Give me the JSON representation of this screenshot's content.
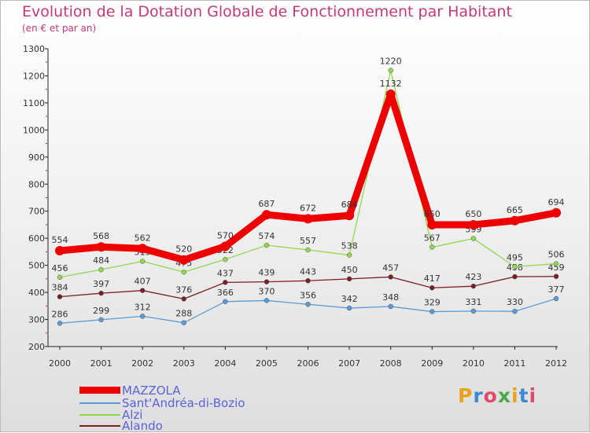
{
  "header": {
    "title": "Evolution de la Dotation Globale de Fonctionnement par Habitant",
    "subtitle": "(en € et par an)"
  },
  "brand": {
    "letters": [
      "P",
      "r",
      "o",
      "x",
      "i",
      "t",
      "i"
    ],
    "colors": [
      "#e8a21b",
      "#3a8ad6",
      "#e04b6b",
      "#4aa84a",
      "#e8a21b",
      "#3a8ad6",
      "#e04b6b"
    ]
  },
  "chart_data": {
    "type": "line",
    "title": "Evolution de la Dotation Globale de Fonctionnement par Habitant",
    "subtitle": "(en € et par an)",
    "xlabel": "",
    "ylabel": "",
    "ylim": [
      200,
      1300
    ],
    "yticks": [
      200,
      300,
      400,
      500,
      600,
      700,
      800,
      900,
      1000,
      1100,
      1200,
      1300
    ],
    "grid": false,
    "legend_position": "bottom-left",
    "categories": [
      "2000",
      "2001",
      "2002",
      "2003",
      "2004",
      "2005",
      "2006",
      "2007",
      "2008",
      "2009",
      "2010",
      "2011",
      "2012"
    ],
    "series": [
      {
        "name": "Sant'Andréa-di-Bozio",
        "color": "#5b9bd5",
        "values": [
          286,
          299,
          312,
          288,
          366,
          370,
          356,
          342,
          348,
          329,
          331,
          330,
          377
        ],
        "labels": [
          "286",
          "299",
          "312",
          "288",
          "366",
          "370",
          "356",
          "342",
          "348",
          "329",
          "331",
          "330",
          "377"
        ]
      },
      {
        "name": "Alando",
        "color": "#7a1f24",
        "values": [
          384,
          397,
          407,
          376,
          437,
          439,
          443,
          450,
          457,
          417,
          423,
          458,
          459
        ],
        "labels": [
          "384",
          "397",
          "407",
          "376",
          "437",
          "439",
          "443",
          "450",
          "457",
          "417",
          "423",
          "458",
          "459"
        ]
      },
      {
        "name": "Alzi",
        "color": "#90d850",
        "values": [
          456,
          484,
          515,
          475,
          522,
          574,
          557,
          538,
          1220,
          567,
          599,
          495,
          506
        ],
        "labels": [
          "456",
          "484",
          "515",
          "475",
          "522",
          "574",
          "557",
          "538",
          "1220",
          "567",
          "599",
          "495",
          "506"
        ]
      },
      {
        "name": "MAZZOLA",
        "color": "#ee0000",
        "values": [
          554,
          568,
          562,
          520,
          570,
          687,
          672,
          684,
          1132,
          650,
          650,
          665,
          694
        ],
        "labels": [
          "554",
          "568",
          "562",
          "520",
          "570",
          "687",
          "672",
          "684",
          "1132",
          "650",
          "650",
          "665",
          "694"
        ]
      }
    ],
    "legend_order": [
      "MAZZOLA",
      "Sant'Andréa-di-Bozio",
      "Alzi",
      "Alando"
    ]
  }
}
